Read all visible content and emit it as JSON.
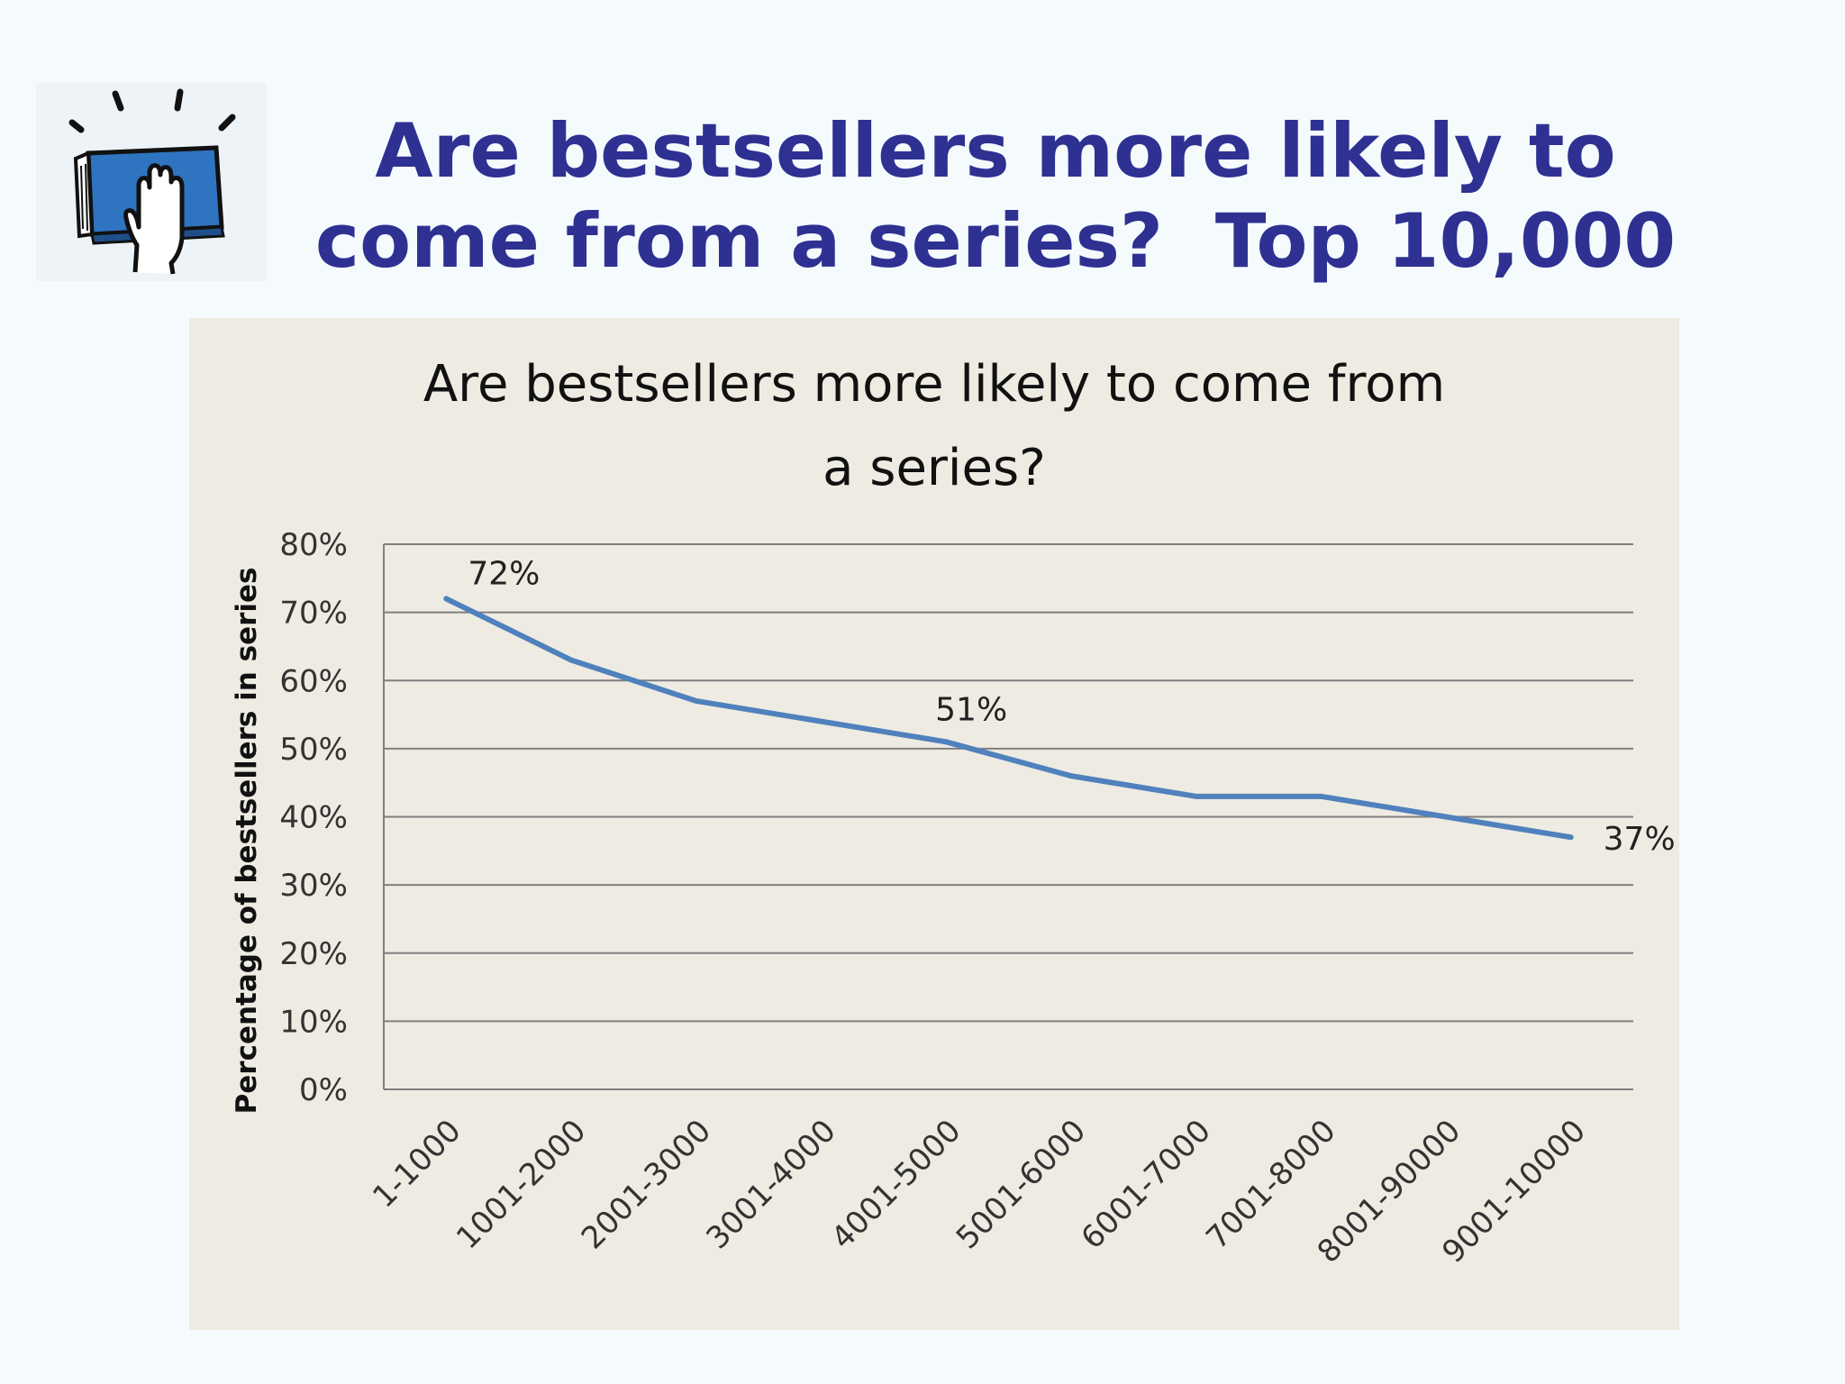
{
  "slide": {
    "title_lines": [
      "Are bestsellers more likely to",
      "come from a series?  Top 10,000"
    ],
    "logo_icon": "book-hand-icon"
  },
  "colors": {
    "title": "#2e3192",
    "line": "#4f81bd",
    "panel": "#eeebe2",
    "gridline": "#7f7f7f"
  },
  "chart_data": {
    "type": "line",
    "title_lines": [
      "Are bestsellers more likely to come from",
      "a series?"
    ],
    "xlabel": "",
    "ylabel": "Percentage of bestsellers in series",
    "categories": [
      "1-1000",
      "1001-2000",
      "2001-3000",
      "3001-4000",
      "4001-5000",
      "5001-6000",
      "6001-7000",
      "7001-8000",
      "8001-90000",
      "9001-10000"
    ],
    "series": [
      {
        "values": [
          72,
          63,
          57,
          54,
          51,
          46,
          43,
          43,
          40,
          37
        ]
      }
    ],
    "ylim": [
      0,
      80
    ],
    "ytick_values": [
      0,
      10,
      20,
      30,
      40,
      50,
      60,
      70,
      80
    ],
    "ytick_labels": [
      "0%",
      "10%",
      "20%",
      "30%",
      "40%",
      "50%",
      "60%",
      "70%",
      "80%"
    ],
    "data_labels": [
      {
        "index": 0,
        "text": "72%"
      },
      {
        "index": 4,
        "text": "51%"
      },
      {
        "index": 9,
        "text": "37%"
      }
    ],
    "grid": true,
    "legend": "none"
  }
}
